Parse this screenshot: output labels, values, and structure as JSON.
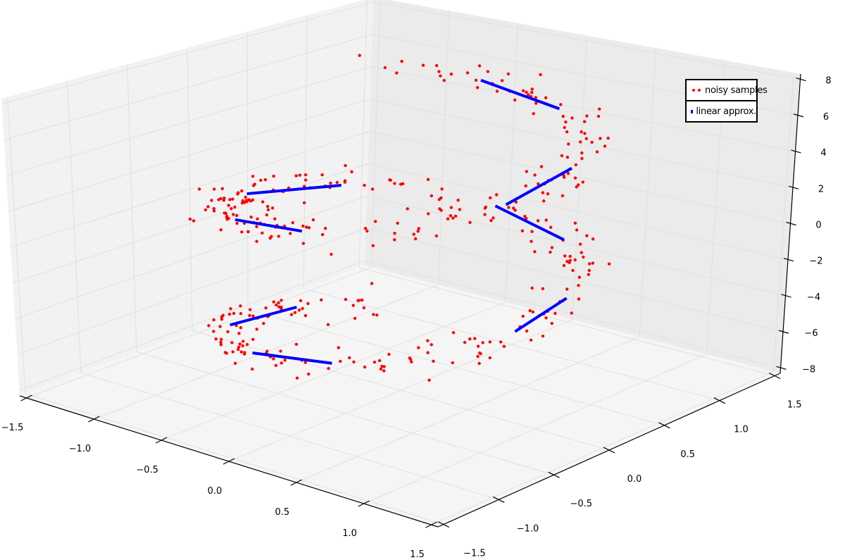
{
  "chart_data": {
    "type": "scatter",
    "projection": "3d",
    "title": "",
    "xlabel": "",
    "ylabel": "",
    "zlabel": "",
    "xlim": [
      -1.55,
      1.55
    ],
    "ylim": [
      -1.55,
      1.55
    ],
    "zlim": [
      -8.3,
      8.3
    ],
    "x_ticks": [
      "−1.5",
      "−1.0",
      "−0.5",
      "0.0",
      "0.5",
      "1.0",
      "1.5"
    ],
    "x_tick_values": [
      -1.5,
      -1.0,
      -0.5,
      0.0,
      0.5,
      1.0,
      1.5
    ],
    "y_ticks": [
      "−1.5",
      "−1.0",
      "−0.5",
      "0.0",
      "0.5",
      "1.0",
      "1.5"
    ],
    "y_tick_values": [
      -1.5,
      -1.0,
      -0.5,
      0.0,
      0.5,
      1.0,
      1.5
    ],
    "z_ticks": [
      "−8",
      "−6",
      "−4",
      "−2",
      "0",
      "2",
      "4",
      "6",
      "8"
    ],
    "z_tick_values": [
      -8,
      -6,
      -4,
      -2,
      0,
      2,
      4,
      6,
      8
    ],
    "grid": true,
    "legend_position": "top-right",
    "series": [
      {
        "name": "noisy samples",
        "kind": "scatter",
        "color": "#ff0000",
        "model": "helix: x=cos(t), y=sin(t), z linear in t, plus noise",
        "n_points": 400,
        "t_range": [
          2.4,
          15.0
        ],
        "z_range": [
          -6.8,
          7.2
        ],
        "xy_noise": 0.12,
        "z_noise": 0.6
      },
      {
        "name": "linear approx.",
        "kind": "segments",
        "color": "#0000ff",
        "segments_t": [
          [
            2.9,
            3.6
          ],
          [
            4.4,
            5.0
          ],
          [
            6.1,
            6.6
          ],
          [
            7.4,
            8.0
          ],
          [
            8.9,
            9.6
          ],
          [
            10.5,
            11.1
          ],
          [
            12.3,
            12.9
          ],
          [
            13.8,
            14.4
          ]
        ]
      }
    ],
    "legend": [
      "noisy samples",
      "linear approx."
    ]
  }
}
